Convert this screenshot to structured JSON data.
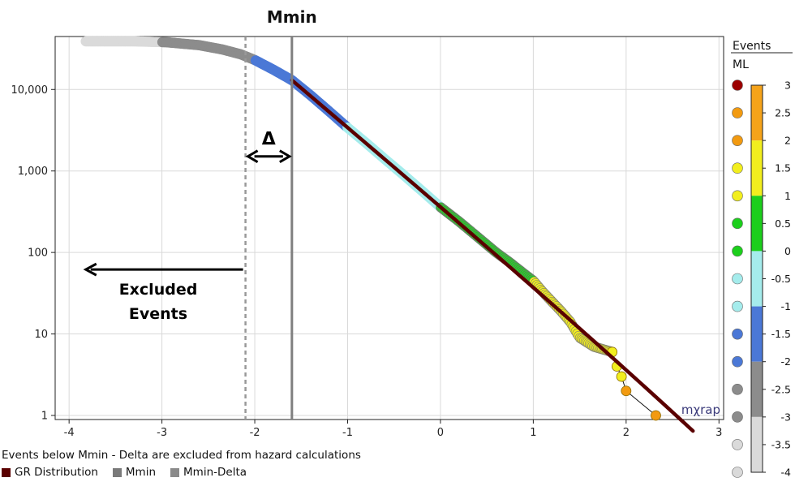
{
  "chart_data": {
    "type": "scatter",
    "title": "Mmin",
    "xlim": [
      -4.15,
      3.05
    ],
    "ylim_log10": [
      -0.05,
      4.65
    ],
    "log_y": true,
    "x_ticks": [
      -4,
      -3,
      -2,
      -1,
      0,
      1,
      2,
      3
    ],
    "x_tick_labels": [
      "-4",
      "-3",
      "-2",
      "-1",
      "0",
      "1",
      "2",
      "3"
    ],
    "y_ticks": [
      1,
      10,
      100,
      1000,
      10000
    ],
    "y_tick_labels": [
      "1",
      "10",
      "100",
      "1,000",
      "10,000"
    ],
    "grid": true,
    "mmin": -1.6,
    "mmin_minus_delta": -2.1,
    "gr_line": {
      "start": [
        -1.6,
        13000
      ],
      "end": [
        2.72,
        0.85
      ]
    },
    "events": [
      {
        "x": -3.82,
        "y": 39000
      },
      {
        "x": -3.3,
        "y": 39000
      },
      {
        "x": -2.95,
        "y": 38000
      },
      {
        "x": -2.6,
        "y": 35000
      },
      {
        "x": -2.35,
        "y": 31000
      },
      {
        "x": -2.15,
        "y": 27000
      },
      {
        "x": -2.0,
        "y": 23000
      },
      {
        "x": -1.8,
        "y": 17500
      },
      {
        "x": -1.6,
        "y": 13000
      },
      {
        "x": -1.4,
        "y": 8500
      },
      {
        "x": -1.2,
        "y": 5400
      },
      {
        "x": -1.0,
        "y": 3400
      },
      {
        "x": -0.8,
        "y": 2200
      },
      {
        "x": -0.6,
        "y": 1400
      },
      {
        "x": -0.4,
        "y": 900
      },
      {
        "x": -0.2,
        "y": 570
      },
      {
        "x": 0.0,
        "y": 360
      },
      {
        "x": 0.2,
        "y": 240
      },
      {
        "x": 0.4,
        "y": 155
      },
      {
        "x": 0.6,
        "y": 100
      },
      {
        "x": 0.75,
        "y": 75
      },
      {
        "x": 0.9,
        "y": 55
      },
      {
        "x": 1.0,
        "y": 45
      },
      {
        "x": 1.1,
        "y": 33
      },
      {
        "x": 1.2,
        "y": 25
      },
      {
        "x": 1.3,
        "y": 19
      },
      {
        "x": 1.4,
        "y": 14
      },
      {
        "x": 1.5,
        "y": 9
      },
      {
        "x": 1.65,
        "y": 7
      },
      {
        "x": 1.85,
        "y": 6
      },
      {
        "x": 1.9,
        "y": 4
      },
      {
        "x": 1.95,
        "y": 3
      },
      {
        "x": 2.0,
        "y": 2
      },
      {
        "x": 2.32,
        "y": 1
      }
    ],
    "colorbar": {
      "header": "Events",
      "label": "ML",
      "range": [
        -4,
        3
      ],
      "tick_labels": [
        "3",
        "2.5",
        "2",
        "1.5",
        "1",
        "0.5",
        "0",
        "-0.5",
        "-1",
        "-1.5",
        "-2",
        "-2.5",
        "-3",
        "-3.5",
        "-4"
      ],
      "tick_values": [
        3,
        2.5,
        2,
        1.5,
        1,
        0.5,
        0,
        -0.5,
        -1,
        -1.5,
        -2,
        -2.5,
        -3,
        -3.5,
        -4
      ],
      "bands": [
        {
          "from": 2,
          "to": 3,
          "color": "#f5a31a"
        },
        {
          "from": 1,
          "to": 2,
          "color": "#f2ee1e"
        },
        {
          "from": 0,
          "to": 1,
          "color": "#1ccf1c"
        },
        {
          "from": -1,
          "to": 0,
          "color": "#a5ecec"
        },
        {
          "from": -2,
          "to": -1,
          "color": "#4b78d6"
        },
        {
          "from": -3,
          "to": -2,
          "color": "#8c8c8c"
        },
        {
          "from": -4,
          "to": -3,
          "color": "#dadada"
        }
      ],
      "markers": [
        {
          "color": "#9c0000"
        },
        {
          "color": "#f29a10"
        },
        {
          "color": "#f29a10"
        },
        {
          "color": "#f2ee1e"
        },
        {
          "color": "#f2ee1e"
        },
        {
          "color": "#1ccf1c"
        },
        {
          "color": "#1ccf1c"
        },
        {
          "color": "#a5ecec"
        },
        {
          "color": "#a5ecec"
        },
        {
          "color": "#4b78d6"
        },
        {
          "color": "#4b78d6"
        },
        {
          "color": "#8c8c8c"
        },
        {
          "color": "#8c8c8c"
        },
        {
          "color": "#dadada"
        },
        {
          "color": "#dadada"
        }
      ]
    },
    "annotations": {
      "delta": "Δ",
      "excluded_line1": "Excluded",
      "excluded_line2": "Events",
      "watermark": "mχrap"
    },
    "colors": {
      "gr": "#5a0000",
      "mmin": "#808080",
      "mmin_delta": "#999999",
      "grid": "#d9d9d9"
    }
  },
  "footnote": "Events below Mmin - Delta are excluded from hazard calculations",
  "legend": [
    {
      "label": "GR Distribution",
      "color": "#5a0000"
    },
    {
      "label": "Mmin",
      "color": "#7a7a7a"
    },
    {
      "label": "Mmin-Delta",
      "color": "#8a8a8a"
    }
  ]
}
